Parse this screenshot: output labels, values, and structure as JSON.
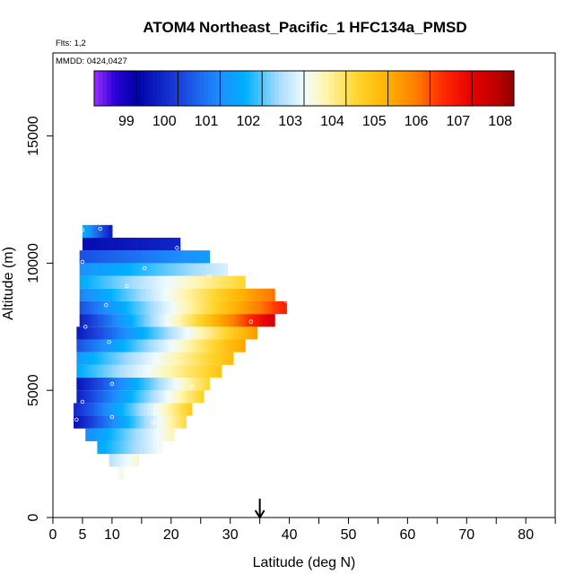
{
  "chart_data": {
    "type": "heatmap",
    "title": "ATOM4 Northeast_Pacific_1 HFC134a_PMSD",
    "flights_label": "Flts: 1,2",
    "dates_label": "MMDD: 0424,0427",
    "xlabel": "Latitude (deg N)",
    "ylabel": "Altitude (m)",
    "xlim": [
      0,
      85
    ],
    "ylim": [
      0,
      17500
    ],
    "x_ticks": [
      0,
      5,
      10,
      20,
      30,
      40,
      50,
      60,
      70,
      80
    ],
    "x_minor_ticks": [
      15,
      25,
      35,
      45,
      55,
      65,
      75,
      85
    ],
    "y_ticks": [
      0,
      5000,
      10000,
      15000
    ],
    "colorbar": {
      "min": 98,
      "max": 108,
      "ticks": [
        99,
        100,
        101,
        102,
        103,
        104,
        105,
        106,
        107,
        108
      ],
      "stops": [
        {
          "v": 98.0,
          "c": "#9b30ff"
        },
        {
          "v": 98.5,
          "c": "#2a00d8"
        },
        {
          "v": 99.0,
          "c": "#0000a6"
        },
        {
          "v": 100.0,
          "c": "#1a3fdb"
        },
        {
          "v": 101.0,
          "c": "#1c90ff"
        },
        {
          "v": 101.6,
          "c": "#00b0ff"
        },
        {
          "v": 102.4,
          "c": "#a8dcff"
        },
        {
          "v": 103.0,
          "c": "#f0fbff"
        },
        {
          "v": 103.5,
          "c": "#fff6b0"
        },
        {
          "v": 104.3,
          "c": "#ffd42a"
        },
        {
          "v": 105.0,
          "c": "#ffb000"
        },
        {
          "v": 105.7,
          "c": "#ff7a00"
        },
        {
          "v": 106.3,
          "c": "#ff2a00"
        },
        {
          "v": 107.0,
          "c": "#e60000"
        },
        {
          "v": 107.7,
          "c": "#b30000"
        },
        {
          "v": 108.0,
          "c": "#8b0000"
        }
      ]
    },
    "arrow_latitude": 35,
    "layers": [
      {
        "alt_bottom": 1500,
        "alt_top": 2000,
        "lat_start": 11,
        "lat_end": 12,
        "v_start": 103.0,
        "v_end": 103.2
      },
      {
        "alt_bottom": 2000,
        "alt_top": 2500,
        "lat_start": 9.5,
        "lat_end": 14.5,
        "v_start": 102.5,
        "v_end": 103.3
      },
      {
        "alt_bottom": 2500,
        "alt_top": 3000,
        "lat_start": 7.5,
        "lat_end": 18.5,
        "v_start": 101.4,
        "v_end": 103.1
      },
      {
        "alt_bottom": 3000,
        "alt_top": 3500,
        "lat_start": 5.5,
        "lat_end": 20.5,
        "v_start": 100.9,
        "v_end": 103.5
      },
      {
        "alt_bottom": 3500,
        "alt_top": 4000,
        "lat_start": 3.5,
        "lat_end": 22.5,
        "v_start": 99.2,
        "v_end": 104.2
      },
      {
        "alt_bottom": 4000,
        "alt_top": 4500,
        "lat_start": 3.5,
        "lat_end": 23.5,
        "v_start": 99.6,
        "v_end": 104.5
      },
      {
        "alt_bottom": 4500,
        "alt_top": 5000,
        "lat_start": 4.0,
        "lat_end": 25.5,
        "v_start": 99.5,
        "v_end": 104.4
      },
      {
        "alt_bottom": 5000,
        "alt_top": 5500,
        "lat_start": 4.0,
        "lat_end": 26.5,
        "v_start": 99.3,
        "v_end": 104.3
      },
      {
        "alt_bottom": 5500,
        "alt_top": 6000,
        "lat_start": 4.0,
        "lat_end": 28.5,
        "v_start": 101.5,
        "v_end": 104.6
      },
      {
        "alt_bottom": 6000,
        "alt_top": 6500,
        "lat_start": 4.0,
        "lat_end": 30.5,
        "v_start": 101.2,
        "v_end": 104.8
      },
      {
        "alt_bottom": 6500,
        "alt_top": 7000,
        "lat_start": 4.0,
        "lat_end": 32.5,
        "v_start": 100.2,
        "v_end": 105.2
      },
      {
        "alt_bottom": 7000,
        "alt_top": 7500,
        "lat_start": 4.0,
        "lat_end": 34.5,
        "v_start": 99.4,
        "v_end": 105.3
      },
      {
        "alt_bottom": 7500,
        "alt_top": 8000,
        "lat_start": 4.5,
        "lat_end": 37.5,
        "v_start": 99.5,
        "v_end": 107.3
      },
      {
        "alt_bottom": 8000,
        "alt_top": 8500,
        "lat_start": 4.5,
        "lat_end": 39.5,
        "v_start": 100.2,
        "v_end": 106.5
      },
      {
        "alt_bottom": 8500,
        "alt_top": 9000,
        "lat_start": 4.5,
        "lat_end": 37.5,
        "v_start": 100.8,
        "v_end": 105.8
      },
      {
        "alt_bottom": 9000,
        "alt_top": 9500,
        "lat_start": 4.5,
        "lat_end": 32.5,
        "v_start": 101.5,
        "v_end": 104.3
      },
      {
        "alt_bottom": 9500,
        "alt_top": 10000,
        "lat_start": 4.5,
        "lat_end": 29.5,
        "v_start": 101.0,
        "v_end": 102.8
      },
      {
        "alt_bottom": 10000,
        "alt_top": 10500,
        "lat_start": 4.5,
        "lat_end": 26.5,
        "v_start": 100.2,
        "v_end": 101.2
      },
      {
        "alt_bottom": 10500,
        "alt_top": 11000,
        "lat_start": 5.0,
        "lat_end": 21.5,
        "v_start": 99.2,
        "v_end": 99.6
      },
      {
        "alt_bottom": 11000,
        "alt_top": 11500,
        "lat_start": 5.0,
        "lat_end": 10.0,
        "v_start": 101.6,
        "v_end": 99.4
      }
    ],
    "sample_points": [
      {
        "lat": 5.0,
        "alt": 11300
      },
      {
        "lat": 8.0,
        "alt": 11350
      },
      {
        "lat": 21.0,
        "alt": 10600
      },
      {
        "lat": 5.0,
        "alt": 10050
      },
      {
        "lat": 15.5,
        "alt": 9800
      },
      {
        "lat": 26.5,
        "alt": 9500
      },
      {
        "lat": 12.5,
        "alt": 9100
      },
      {
        "lat": 39.5,
        "alt": 8500
      },
      {
        "lat": 9.0,
        "alt": 8350
      },
      {
        "lat": 33.5,
        "alt": 7700
      },
      {
        "lat": 5.5,
        "alt": 7500
      },
      {
        "lat": 9.5,
        "alt": 6900
      },
      {
        "lat": 10.0,
        "alt": 5250
      },
      {
        "lat": 23.5,
        "alt": 5150
      },
      {
        "lat": 5.0,
        "alt": 4550
      },
      {
        "lat": 10.0,
        "alt": 3950
      },
      {
        "lat": 17.0,
        "alt": 3750
      },
      {
        "lat": 4.0,
        "alt": 3850
      }
    ]
  }
}
